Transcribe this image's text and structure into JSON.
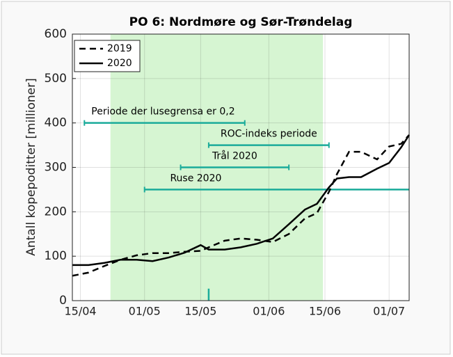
{
  "chart_data": {
    "type": "line",
    "title": "PO 6: Nordmøre og Sør-Trøndelag",
    "y_label": "Antall kopepoditter [millioner]",
    "x": [
      104,
      108,
      112,
      116,
      120,
      124,
      128,
      132,
      136,
      138,
      142,
      146,
      150,
      154,
      158,
      162,
      165,
      168,
      170,
      173,
      176,
      180,
      183,
      186,
      188
    ],
    "series": [
      {
        "name": "2019",
        "color": "#000000",
        "dash": true,
        "values": [
          56,
          63,
          78,
          92,
          102,
          107,
          107,
          110,
          112,
          120,
          135,
          140,
          137,
          132,
          150,
          185,
          197,
          245,
          285,
          335,
          335,
          318,
          347,
          353,
          373
        ]
      },
      {
        "name": "2020",
        "color": "#000000",
        "dash": false,
        "values": [
          80,
          80,
          85,
          92,
          92,
          89,
          97,
          108,
          125,
          115,
          115,
          120,
          128,
          140,
          172,
          205,
          218,
          255,
          275,
          278,
          278,
          297,
          310,
          345,
          373
        ]
      }
    ],
    "xlim": [
      104,
      188
    ],
    "ylim": [
      0,
      600
    ],
    "xticks": [
      {
        "value": 106,
        "label": "15/04"
      },
      {
        "value": 122,
        "label": "01/05"
      },
      {
        "value": 136,
        "label": "15/05"
      },
      {
        "value": 153,
        "label": "01/06"
      },
      {
        "value": 167,
        "label": "15/06"
      },
      {
        "value": 183,
        "label": "01/07"
      }
    ],
    "yticks": [
      0,
      100,
      200,
      300,
      400,
      500,
      600
    ],
    "shaded_span": {
      "x": [
        113.5,
        166.5
      ],
      "color": "#d6f5d2"
    },
    "intervals": [
      {
        "label": "Periode der lusegrensa er 0,2",
        "x": [
          107,
          147
        ],
        "y": 400
      },
      {
        "label": "ROC-indeks periode",
        "x": [
          138,
          168
        ],
        "y": 350
      },
      {
        "label": "Trål 2020",
        "x": [
          131,
          158
        ],
        "y": 300
      },
      {
        "label": "Ruse 2020",
        "x": [
          122,
          188
        ],
        "y": 250
      }
    ],
    "interval_color": "#1aab9a",
    "marker": {
      "x": 138,
      "y": [
        0,
        27
      ]
    },
    "legend": "upper left"
  }
}
